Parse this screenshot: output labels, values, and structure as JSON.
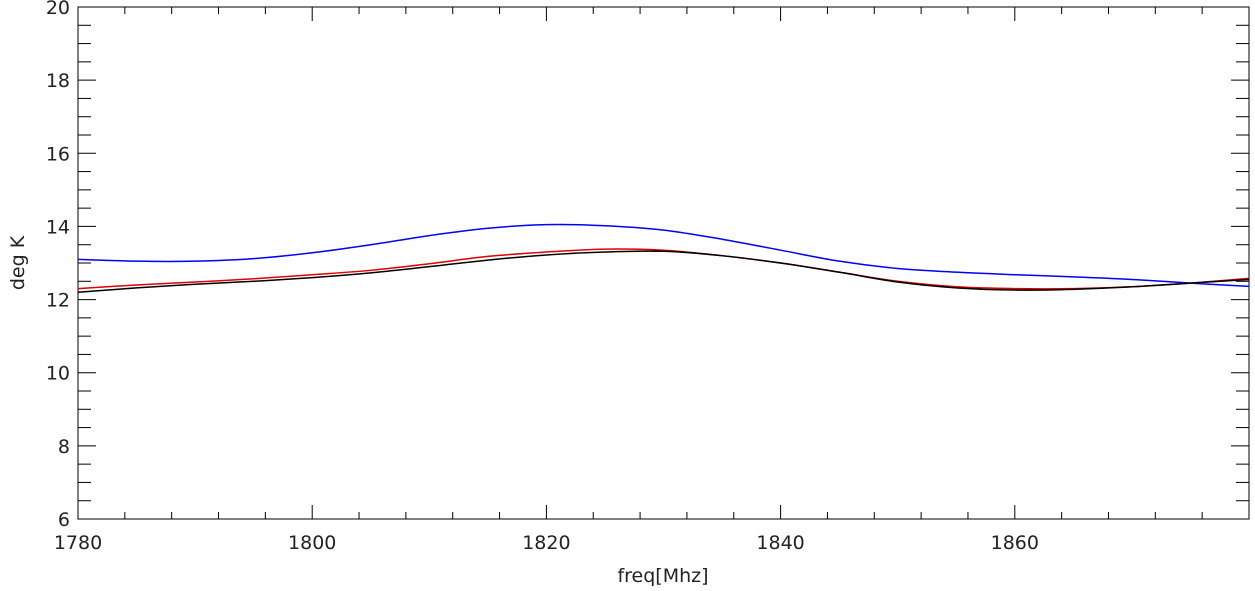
{
  "chart_data": {
    "type": "line",
    "title": "",
    "xlabel": "freq[Mhz]",
    "ylabel": "deg K",
    "xlim": [
      1780,
      1880
    ],
    "ylim": [
      6,
      20
    ],
    "x_ticks": [
      1780,
      1800,
      1820,
      1840,
      1860
    ],
    "y_ticks": [
      6,
      8,
      10,
      12,
      14,
      16,
      18,
      20
    ],
    "x_minor_step": 4,
    "y_minor_step": 0.5,
    "grid": false,
    "series": [
      {
        "color": "#0000ff",
        "x": [
          1780,
          1785,
          1790,
          1795,
          1800,
          1805,
          1810,
          1815,
          1820,
          1825,
          1830,
          1835,
          1840,
          1845,
          1850,
          1855,
          1860,
          1865,
          1870,
          1875,
          1880
        ],
        "y": [
          13.1,
          13.05,
          13.05,
          13.12,
          13.28,
          13.5,
          13.75,
          13.95,
          14.05,
          14.02,
          13.9,
          13.65,
          13.35,
          13.05,
          12.85,
          12.75,
          12.68,
          12.62,
          12.55,
          12.45,
          12.36
        ]
      },
      {
        "color": "#e00000",
        "x": [
          1780,
          1785,
          1790,
          1795,
          1800,
          1805,
          1810,
          1815,
          1820,
          1825,
          1830,
          1835,
          1840,
          1845,
          1850,
          1855,
          1860,
          1865,
          1870,
          1875,
          1880
        ],
        "y": [
          12.3,
          12.4,
          12.48,
          12.57,
          12.68,
          12.8,
          12.98,
          13.18,
          13.3,
          13.38,
          13.35,
          13.2,
          13.0,
          12.75,
          12.5,
          12.35,
          12.3,
          12.3,
          12.35,
          12.45,
          12.58
        ]
      },
      {
        "color": "#000000",
        "x": [
          1780,
          1785,
          1790,
          1795,
          1800,
          1805,
          1810,
          1815,
          1820,
          1825,
          1830,
          1835,
          1840,
          1845,
          1850,
          1855,
          1860,
          1865,
          1870,
          1875,
          1880
        ],
        "y": [
          12.2,
          12.32,
          12.42,
          12.5,
          12.6,
          12.73,
          12.9,
          13.08,
          13.22,
          13.3,
          13.32,
          13.2,
          13.0,
          12.75,
          12.48,
          12.32,
          12.26,
          12.28,
          12.35,
          12.45,
          12.55
        ]
      }
    ]
  }
}
